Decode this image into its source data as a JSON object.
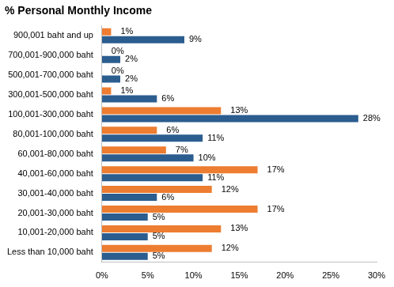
{
  "chart_data": {
    "type": "bar",
    "title": "% Personal Monthly Income",
    "orientation": "horizontal",
    "categories": [
      "900,001 baht and up",
      "700,001-900,000 baht",
      "500,001-700,000 baht",
      "300,001-500,000 baht",
      "100,001-300,000 baht",
      "80,001-100,000 baht",
      "60,001-80,000 baht",
      "40,001-60,000 baht",
      "30,001-40,000 baht",
      "20,001-30,000 baht",
      "10,001-20,000 baht",
      "Less than 10,000 baht"
    ],
    "series": [
      {
        "color": "#ed7d31",
        "values": [
          1,
          0,
          0,
          1,
          13,
          6,
          7,
          17,
          12,
          17,
          13,
          12
        ],
        "value_labels": [
          "1%",
          "0%",
          "0%",
          "1%",
          "13%",
          "6%",
          "7%",
          "17%",
          "12%",
          "17%",
          "13%",
          "12%"
        ]
      },
      {
        "color": "#2b5d8f",
        "values": [
          9,
          2,
          2,
          6,
          28,
          11,
          10,
          11,
          6,
          5,
          5,
          5
        ],
        "value_labels": [
          "9%",
          "2%",
          "2%",
          "6%",
          "28%",
          "11%",
          "10%",
          "11%",
          "6%",
          "5%",
          "5%",
          "5%"
        ]
      }
    ],
    "xlim": [
      0,
      30
    ],
    "xticks": [
      {
        "value": 0,
        "label": "0%"
      },
      {
        "value": 5,
        "label": "5%"
      },
      {
        "value": 10,
        "label": "10%"
      },
      {
        "value": 15,
        "label": "15%"
      },
      {
        "value": 20,
        "label": "20%"
      },
      {
        "value": 25,
        "label": "25%"
      },
      {
        "value": 30,
        "label": "30%"
      }
    ],
    "grid": false,
    "data_labels": true
  }
}
